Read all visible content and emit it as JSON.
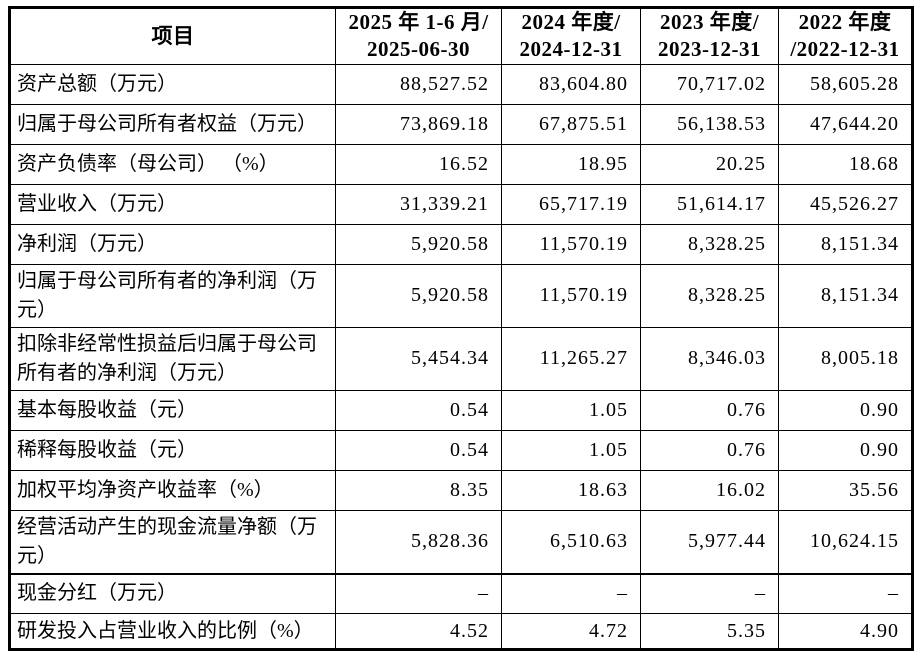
{
  "colors": {
    "background": "#ffffff",
    "border": "#000000",
    "text": "#000000"
  },
  "table": {
    "header": {
      "item": "项目",
      "periods": [
        {
          "line1": "2025 年 1-6 月/",
          "line2": "2025-06-30"
        },
        {
          "line1": "2024 年度/",
          "line2": "2024-12-31"
        },
        {
          "line1": "2023 年度/",
          "line2": "2023-12-31"
        },
        {
          "line1": "2022 年度",
          "line2": "/2022-12-31"
        }
      ]
    },
    "rows": [
      {
        "label": "资产总额（万元）",
        "values": [
          "88,527.52",
          "83,604.80",
          "70,717.02",
          "58,605.28"
        ]
      },
      {
        "label": "归属于母公司所有者权益（万元）",
        "values": [
          "73,869.18",
          "67,875.51",
          "56,138.53",
          "47,644.20"
        ]
      },
      {
        "label": "资产负债率（母公司） （%）",
        "values": [
          "16.52",
          "18.95",
          "20.25",
          "18.68"
        ]
      },
      {
        "label": "营业收入（万元）",
        "values": [
          "31,339.21",
          "65,717.19",
          "51,614.17",
          "45,526.27"
        ]
      },
      {
        "label": "净利润（万元）",
        "values": [
          "5,920.58",
          "11,570.19",
          "8,328.25",
          "8,151.34"
        ]
      },
      {
        "label": "归属于母公司所有者的净利润（万元）",
        "values": [
          "5,920.58",
          "11,570.19",
          "8,328.25",
          "8,151.34"
        ]
      },
      {
        "label": "扣除非经常性损益后归属于母公司所有者的净利润（万元）",
        "values": [
          "5,454.34",
          "11,265.27",
          "8,346.03",
          "8,005.18"
        ]
      },
      {
        "label": "基本每股收益（元）",
        "values": [
          "0.54",
          "1.05",
          "0.76",
          "0.90"
        ]
      },
      {
        "label": "稀释每股收益（元）",
        "values": [
          "0.54",
          "1.05",
          "0.76",
          "0.90"
        ]
      },
      {
        "label": "加权平均净资产收益率（%）",
        "values": [
          "8.35",
          "18.63",
          "16.02",
          "35.56"
        ]
      },
      {
        "label": "经营活动产生的现金流量净额（万元）",
        "values": [
          "5,828.36",
          "6,510.63",
          "5,977.44",
          "10,624.15"
        ]
      },
      {
        "label": "现金分红（万元）",
        "values": [
          "–",
          "–",
          "–",
          "–"
        ]
      },
      {
        "label": "研发投入占营业收入的比例（%）",
        "values": [
          "4.52",
          "4.72",
          "5.35",
          "4.90"
        ]
      }
    ]
  }
}
